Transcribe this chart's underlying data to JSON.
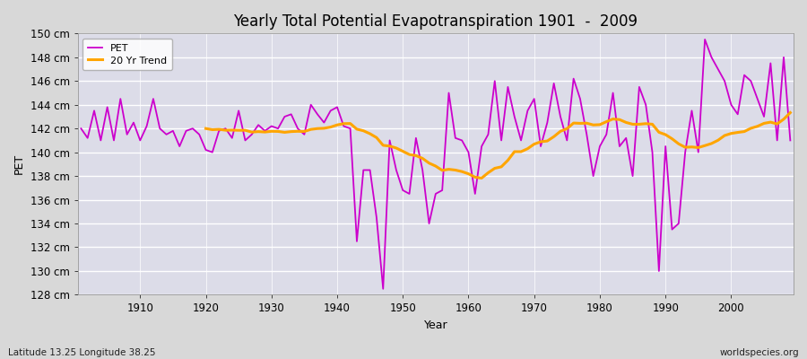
{
  "title": "Yearly Total Potential Evapotranspiration 1901  -  2009",
  "ylabel": "PET",
  "xlabel": "Year",
  "footer_left": "Latitude 13.25 Longitude 38.25",
  "footer_right": "worldspecies.org",
  "pet_color": "#cc00cc",
  "trend_color": "#ffa500",
  "bg_color": "#d8d8d8",
  "plot_bg_color": "#dcdce8",
  "ylim_min": 128,
  "ylim_max": 150,
  "ytick_step": 2,
  "years": [
    1901,
    1902,
    1903,
    1904,
    1905,
    1906,
    1907,
    1908,
    1909,
    1910,
    1911,
    1912,
    1913,
    1914,
    1915,
    1916,
    1917,
    1918,
    1919,
    1920,
    1921,
    1922,
    1923,
    1924,
    1925,
    1926,
    1927,
    1928,
    1929,
    1930,
    1931,
    1932,
    1933,
    1934,
    1935,
    1936,
    1937,
    1938,
    1939,
    1940,
    1941,
    1942,
    1943,
    1944,
    1945,
    1946,
    1947,
    1948,
    1949,
    1950,
    1951,
    1952,
    1953,
    1954,
    1955,
    1956,
    1957,
    1958,
    1959,
    1960,
    1961,
    1962,
    1963,
    1964,
    1965,
    1966,
    1967,
    1968,
    1969,
    1970,
    1971,
    1972,
    1973,
    1974,
    1975,
    1976,
    1977,
    1978,
    1979,
    1980,
    1981,
    1982,
    1983,
    1984,
    1985,
    1986,
    1987,
    1988,
    1989,
    1990,
    1991,
    1992,
    1993,
    1994,
    1995,
    1996,
    1997,
    1998,
    1999,
    2000,
    2001,
    2002,
    2003,
    2004,
    2005,
    2006,
    2007,
    2008,
    2009
  ],
  "pet_values": [
    142.0,
    141.2,
    143.5,
    141.0,
    143.8,
    141.0,
    144.5,
    141.5,
    142.5,
    141.0,
    142.2,
    144.5,
    142.0,
    141.5,
    141.8,
    140.5,
    141.8,
    142.0,
    141.5,
    140.2,
    140.0,
    141.8,
    142.0,
    141.2,
    143.5,
    141.0,
    141.5,
    142.3,
    141.8,
    142.2,
    142.0,
    143.0,
    143.2,
    142.0,
    141.5,
    144.0,
    143.2,
    142.5,
    143.5,
    143.8,
    142.2,
    142.0,
    132.5,
    138.5,
    138.5,
    134.5,
    128.5,
    141.0,
    138.5,
    136.8,
    136.5,
    141.2,
    138.5,
    134.0,
    136.5,
    136.8,
    145.0,
    141.2,
    141.0,
    140.0,
    136.5,
    140.5,
    141.5,
    146.0,
    141.0,
    145.5,
    143.0,
    141.0,
    143.5,
    144.5,
    140.5,
    142.5,
    145.8,
    143.0,
    141.0,
    146.2,
    144.5,
    141.5,
    138.0,
    140.5,
    141.5,
    145.0,
    140.5,
    141.2,
    138.0,
    145.5,
    144.0,
    140.0,
    130.0,
    140.5,
    133.5,
    134.0,
    140.0,
    143.5,
    140.0,
    149.5,
    148.0,
    147.0,
    146.0,
    144.0,
    143.2,
    146.5,
    146.0,
    144.5,
    143.0,
    147.5,
    141.0,
    148.0,
    141.0
  ],
  "xticks": [
    1910,
    1920,
    1930,
    1940,
    1950,
    1960,
    1970,
    1980,
    1990,
    2000
  ]
}
